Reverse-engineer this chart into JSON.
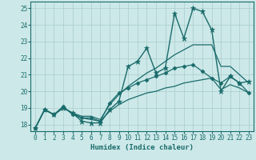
{
  "xlabel": "Humidex (Indice chaleur)",
  "xlim": [
    -0.5,
    23.5
  ],
  "ylim": [
    17.6,
    25.4
  ],
  "background_color": "#cce8e8",
  "grid_color": "#aacccc",
  "line_color": "#1a6b6b",
  "xticks": [
    0,
    1,
    2,
    3,
    4,
    5,
    6,
    7,
    8,
    9,
    10,
    11,
    12,
    13,
    14,
    15,
    16,
    17,
    18,
    19,
    20,
    21,
    22,
    23
  ],
  "yticks": [
    18,
    19,
    20,
    21,
    22,
    23,
    24,
    25
  ],
  "series": [
    {
      "x": [
        0,
        1,
        2,
        3,
        4,
        5,
        6,
        7,
        8,
        9,
        10,
        11,
        12,
        13,
        14,
        15,
        16,
        17,
        18,
        19,
        20,
        21,
        22,
        23
      ],
      "y": [
        17.8,
        18.9,
        18.6,
        19.0,
        18.7,
        18.2,
        18.1,
        18.1,
        18.9,
        19.4,
        21.5,
        21.8,
        22.6,
        21.1,
        21.4,
        24.7,
        23.2,
        25.0,
        24.8,
        23.7,
        20.0,
        20.9,
        20.5,
        20.6
      ],
      "marker": "*",
      "markersize": 4.5,
      "linewidth": 1.0
    },
    {
      "x": [
        0,
        1,
        2,
        3,
        4,
        5,
        6,
        7,
        8,
        9,
        10,
        11,
        12,
        13,
        14,
        15,
        16,
        17,
        18,
        19,
        20,
        21,
        22,
        23
      ],
      "y": [
        17.8,
        18.9,
        18.6,
        19.0,
        18.7,
        18.5,
        18.5,
        18.3,
        19.2,
        19.8,
        20.3,
        20.7,
        21.1,
        21.4,
        21.8,
        22.2,
        22.5,
        22.8,
        22.8,
        22.8,
        21.5,
        21.5,
        21.0,
        20.5
      ],
      "marker": "",
      "markersize": 0,
      "linewidth": 0.9
    },
    {
      "x": [
        0,
        1,
        2,
        3,
        4,
        5,
        6,
        7,
        8,
        9,
        10,
        11,
        12,
        13,
        14,
        15,
        16,
        17,
        18,
        19,
        20,
        21,
        22,
        23
      ],
      "y": [
        17.8,
        18.9,
        18.6,
        19.1,
        18.6,
        18.4,
        18.4,
        18.2,
        19.3,
        19.9,
        20.2,
        20.5,
        20.7,
        20.9,
        21.1,
        21.4,
        21.5,
        21.6,
        21.2,
        20.8,
        20.5,
        20.9,
        20.5,
        19.9
      ],
      "marker": "D",
      "markersize": 2.5,
      "linewidth": 0.9
    },
    {
      "x": [
        0,
        1,
        2,
        3,
        4,
        5,
        6,
        7,
        8,
        9,
        10,
        11,
        12,
        13,
        14,
        15,
        16,
        17,
        18,
        19,
        20,
        21,
        22,
        23
      ],
      "y": [
        17.8,
        18.9,
        18.6,
        19.0,
        18.7,
        18.4,
        18.3,
        18.2,
        18.8,
        19.2,
        19.5,
        19.7,
        19.9,
        20.0,
        20.2,
        20.3,
        20.5,
        20.6,
        20.7,
        20.8,
        20.1,
        20.4,
        20.2,
        19.9
      ],
      "marker": "",
      "markersize": 0,
      "linewidth": 0.9
    }
  ]
}
